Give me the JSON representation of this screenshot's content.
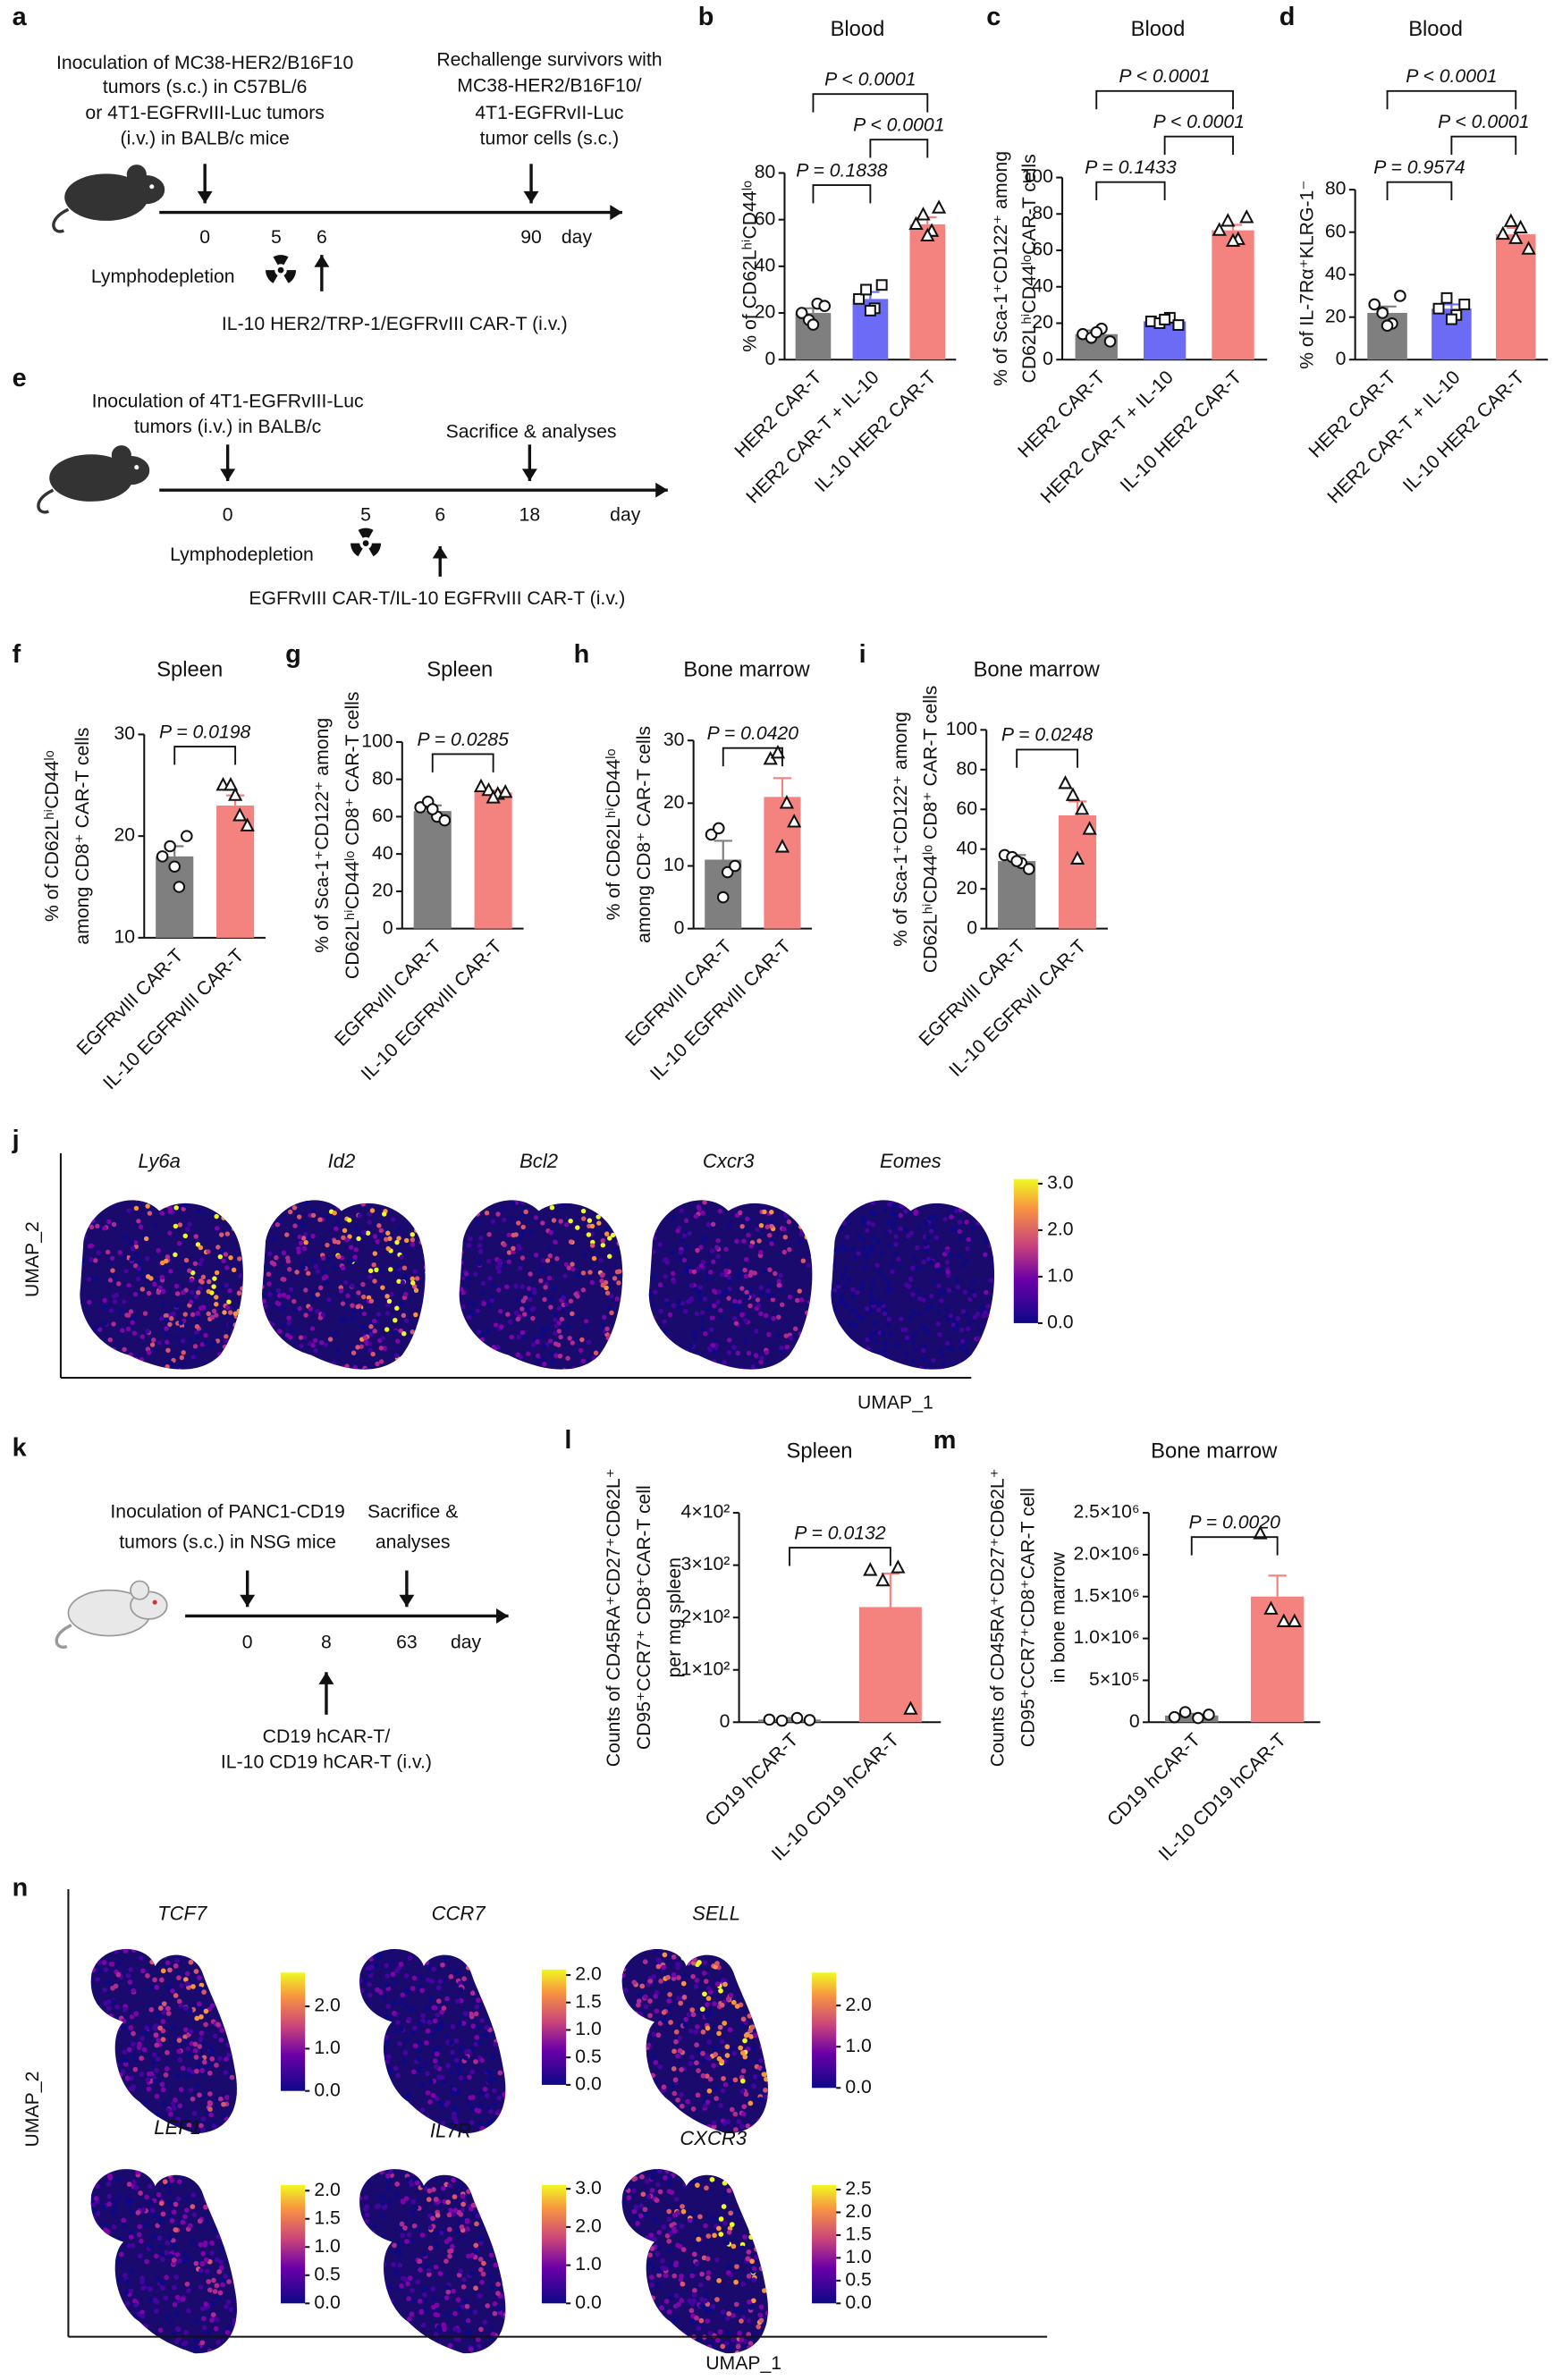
{
  "diagrams": {
    "a": {
      "letter": "a",
      "left_text": [
        "Inoculation of MC38-HER2/B16F10",
        "tumors (s.c.) in C57BL/6",
        "or 4T1-EGFRvIII-Luc tumors",
        "(i.v.) in BALB/c mice"
      ],
      "right_text": [
        "Rechallenge survivors with",
        "MC38-HER2/B16F10/",
        "4T1-EGFRvII-Luc",
        "tumor cells (s.c.)"
      ],
      "days": [
        "0",
        "5",
        "6",
        "90"
      ],
      "day_label": "day",
      "lymphodepletion": "Lymphodepletion",
      "bottom_text": [
        "IL-10 HER2/TRP-1/EGFRvIII CAR-T (i.v.)"
      ]
    },
    "e": {
      "letter": "e",
      "left_text": [
        "Inoculation of 4T1-EGFRvIII-Luc",
        "tumors (i.v.) in BALB/c"
      ],
      "right_text": [
        "Sacrifice & analyses"
      ],
      "days": [
        "0",
        "5",
        "6",
        "18"
      ],
      "day_label": "day",
      "lymphodepletion": "Lymphodepletion",
      "bottom_text": [
        "EGFRvIII CAR-T/IL-10 EGFRvIII CAR-T (i.v.)"
      ]
    },
    "k": {
      "letter": "k",
      "left_text": [
        "Inoculation of PANC1-CD19",
        "tumors (s.c.) in NSG mice"
      ],
      "right_text": [
        "Sacrifice &",
        "analyses"
      ],
      "days": [
        "0",
        "8",
        "63"
      ],
      "day_label": "day",
      "bottom_text": [
        "CD19 hCAR-T/",
        "IL-10 CD19 hCAR-T (i.v.)"
      ]
    }
  },
  "umaps": {
    "j": {
      "letter": "j",
      "xlabel": "UMAP_1",
      "ylabel": "UMAP_2",
      "genes": [
        {
          "name": "Ly6a"
        },
        {
          "name": "Id2"
        },
        {
          "name": "Bcl2"
        },
        {
          "name": "Cxcr3"
        },
        {
          "name": "Eomes",
          "clim": [
            0,
            3.1
          ],
          "ticks": [
            {
              "value": 0,
              "label": "0.0"
            },
            {
              "value": 1,
              "label": "1.0"
            },
            {
              "value": 2,
              "label": "2.0"
            },
            {
              "value": 3,
              "label": "3.0"
            }
          ]
        }
      ]
    },
    "n": {
      "letter": "n",
      "xlabel": "UMAP_1",
      "ylabel": "UMAP_2",
      "genes": [
        {
          "name": "TCF7",
          "clim": [
            0,
            2.8
          ],
          "ticks": [
            {
              "value": 0,
              "label": "0.0"
            },
            {
              "value": 1,
              "label": "1.0"
            },
            {
              "value": 2,
              "label": "2.0"
            }
          ]
        },
        {
          "name": "CCR7",
          "clim": [
            0,
            2.1
          ],
          "ticks": [
            {
              "value": 0,
              "label": "0.0"
            },
            {
              "value": 0.5,
              "label": "0.5"
            },
            {
              "value": 1,
              "label": "1.0"
            },
            {
              "value": 1.5,
              "label": "1.5"
            },
            {
              "value": 2,
              "label": "2.0"
            }
          ]
        },
        {
          "name": "SELL",
          "clim": [
            0,
            2.8
          ],
          "ticks": [
            {
              "value": 0,
              "label": "0.0"
            },
            {
              "value": 1,
              "label": "1.0"
            },
            {
              "value": 2,
              "label": "2.0"
            }
          ]
        },
        {
          "name": "LEF1",
          "clim": [
            0,
            2.1
          ],
          "ticks": [
            {
              "value": 0,
              "label": "0.0"
            },
            {
              "value": 0.5,
              "label": "0.5"
            },
            {
              "value": 1,
              "label": "1.0"
            },
            {
              "value": 1.5,
              "label": "1.5"
            },
            {
              "value": 2,
              "label": "2.0"
            }
          ]
        },
        {
          "name": "IL7R",
          "clim": [
            0,
            3.1
          ],
          "ticks": [
            {
              "value": 0,
              "label": "0.0"
            },
            {
              "value": 1,
              "label": "1.0"
            },
            {
              "value": 2,
              "label": "2.0"
            },
            {
              "value": 3,
              "label": "3.0"
            }
          ]
        },
        {
          "name": "CXCR3",
          "clim": [
            0,
            2.6
          ],
          "ticks": [
            {
              "value": 0,
              "label": "0.0"
            },
            {
              "value": 0.5,
              "label": "0.5"
            },
            {
              "value": 1,
              "label": "1.0"
            },
            {
              "value": 1.5,
              "label": "1.5"
            },
            {
              "value": 2,
              "label": "2.0"
            },
            {
              "value": 2.5,
              "label": "2.5"
            }
          ]
        }
      ]
    }
  },
  "chart_data": [
    {
      "type": "bar",
      "panel": "b",
      "title": "Blood",
      "ylabel": [
        "% of CD62LʰⁱCD44ˡᵒ"
      ],
      "categories": [
        "HER2 CAR-T",
        "HER2 CAR-T + IL-10",
        "IL-10 HER2 CAR-T"
      ],
      "colors": [
        "#7f7f7f",
        "#6b6bf5",
        "#f4827f"
      ],
      "markers": [
        "circle",
        "square",
        "triangle"
      ],
      "values": [
        20,
        26,
        58
      ],
      "errors": [
        2,
        3,
        3
      ],
      "points": [
        [
          20,
          17,
          24,
          23,
          15
        ],
        [
          26,
          30,
          22,
          32,
          21
        ],
        [
          58,
          62,
          55,
          65,
          53
        ]
      ],
      "ylim": [
        0,
        80
      ],
      "yticks": [
        0,
        20,
        40,
        60,
        80
      ],
      "p_values": [
        "P = 0.1838",
        "P < 0.0001",
        "P < 0.0001"
      ]
    },
    {
      "type": "bar",
      "panel": "c",
      "title": "Blood",
      "ylabel": [
        "% of Sca-1⁺CD122⁺ among",
        "CD62LʰⁱCD44ˡᵒCAR-T cells"
      ],
      "categories": [
        "HER2 CAR-T",
        "HER2 CAR-T + IL-10",
        "IL-10 HER2 CAR-T"
      ],
      "colors": [
        "#7f7f7f",
        "#6b6bf5",
        "#f4827f"
      ],
      "markers": [
        "circle",
        "square",
        "triangle"
      ],
      "values": [
        14,
        21,
        71
      ],
      "errors": [
        2,
        1,
        3
      ],
      "points": [
        [
          14,
          12,
          17,
          10,
          15
        ],
        [
          21,
          20,
          23,
          19,
          22
        ],
        [
          71,
          76,
          66,
          78,
          65
        ]
      ],
      "ylim": [
        0,
        100
      ],
      "yticks": [
        0,
        20,
        40,
        60,
        80,
        100
      ],
      "p_values": [
        "P = 0.1433",
        "P < 0.0001",
        "P < 0.0001"
      ]
    },
    {
      "type": "bar",
      "panel": "d",
      "title": "Blood",
      "ylabel": [
        "% of IL-7Rα⁺KLRG-1⁻"
      ],
      "categories": [
        "HER2 CAR-T",
        "HER2 CAR-T + IL-10",
        "IL-10 HER2 CAR-T"
      ],
      "colors": [
        "#7f7f7f",
        "#6b6bf5",
        "#f4827f"
      ],
      "markers": [
        "circle",
        "square",
        "triangle"
      ],
      "values": [
        22,
        24,
        59
      ],
      "errors": [
        3,
        2,
        3
      ],
      "points": [
        [
          26,
          22,
          17,
          30,
          16
        ],
        [
          24,
          29,
          21,
          26,
          19
        ],
        [
          59,
          65,
          62,
          52,
          57
        ]
      ],
      "ylim": [
        0,
        80
      ],
      "yticks": [
        0,
        20,
        40,
        60,
        80
      ],
      "p_values": [
        "P = 0.9574",
        "P < 0.0001",
        "P < 0.0001"
      ]
    },
    {
      "type": "bar",
      "panel": "f",
      "title": "Spleen",
      "ylabel": [
        "% of CD62LʰⁱCD44ˡᵒ",
        "among CD8⁺ CAR-T cells"
      ],
      "categories": [
        "EGFRvIII CAR-T",
        "IL-10 EGFRvIII CAR-T"
      ],
      "colors": [
        "#7f7f7f",
        "#f4827f"
      ],
      "markers": [
        "circle",
        "triangle"
      ],
      "values": [
        18,
        23
      ],
      "errors": [
        1,
        1
      ],
      "points": [
        [
          18,
          19,
          15,
          20,
          17
        ],
        [
          25,
          25,
          22,
          21,
          24
        ]
      ],
      "ylim": [
        10,
        30
      ],
      "yticks": [
        10,
        20,
        30
      ],
      "p_values": [
        "P = 0.0198"
      ]
    },
    {
      "type": "bar",
      "panel": "g",
      "title": "Spleen",
      "ylabel": [
        "% of Sca-1⁺CD122⁺ among",
        "CD62LʰⁱCD44ˡᵒ CD8⁺ CAR-T cells"
      ],
      "categories": [
        "EGFRvIII CAR-T",
        "IL-10 EGFRvIII CAR-T"
      ],
      "colors": [
        "#7f7f7f",
        "#f4827f"
      ],
      "markers": [
        "circle",
        "triangle"
      ],
      "values": [
        63,
        73
      ],
      "errors": [
        3,
        1
      ],
      "points": [
        [
          65,
          68,
          60,
          58,
          64
        ],
        [
          76,
          74,
          72,
          73,
          70
        ]
      ],
      "ylim": [
        0,
        100
      ],
      "yticks": [
        0,
        20,
        40,
        60,
        80,
        100
      ],
      "p_values": [
        "P = 0.0285"
      ]
    },
    {
      "type": "bar",
      "panel": "h",
      "title": "Bone marrow",
      "ylabel": [
        "% of CD62LʰⁱCD44ˡᵒ",
        "among CD8⁺ CAR-T cells"
      ],
      "categories": [
        "EGFRvIII CAR-T",
        "IL-10 EGFRvIII CAR-T"
      ],
      "colors": [
        "#7f7f7f",
        "#f4827f"
      ],
      "markers": [
        "circle",
        "triangle"
      ],
      "values": [
        11,
        21
      ],
      "errors": [
        3,
        3
      ],
      "points": [
        [
          15,
          16,
          9,
          10,
          5
        ],
        [
          27,
          28,
          20,
          17,
          13
        ]
      ],
      "ylim": [
        0,
        30
      ],
      "yticks": [
        0,
        10,
        20,
        30
      ],
      "p_values": [
        "P = 0.0420"
      ]
    },
    {
      "type": "bar",
      "panel": "i",
      "title": "Bone marrow",
      "ylabel": [
        "% of Sca-1⁺CD122⁺ among",
        "CD62LʰⁱCD44ˡᵒ CD8⁺ CAR-T cells"
      ],
      "categories": [
        "EGFRvIII CAR-T",
        "IL-10 EGFRvII CAR-T"
      ],
      "colors": [
        "#7f7f7f",
        "#f4827f"
      ],
      "markers": [
        "circle",
        "triangle"
      ],
      "values": [
        34,
        57
      ],
      "errors": [
        3,
        7
      ],
      "points": [
        [
          37,
          36,
          33,
          30,
          34
        ],
        [
          73,
          67,
          60,
          50,
          35
        ]
      ],
      "ylim": [
        0,
        100
      ],
      "yticks": [
        0,
        20,
        40,
        60,
        80,
        100
      ],
      "p_values": [
        "P = 0.0248"
      ]
    },
    {
      "type": "bar",
      "panel": "l",
      "title": "Spleen",
      "ylabel": [
        "Counts of CD45RA⁺CD27⁺CD62L⁺",
        "CD95⁺CCR7⁺ CD8⁺CAR-T cell",
        "per mg spleen"
      ],
      "categories": [
        "CD19 hCAR-T",
        "IL-10 CD19 hCAR-T"
      ],
      "colors": [
        "#7f7f7f",
        "#f4827f"
      ],
      "markers": [
        "circle",
        "triangle"
      ],
      "values": [
        5,
        220
      ],
      "errors": [
        3,
        64
      ],
      "points": [
        [
          5,
          3,
          8,
          4
        ],
        [
          290,
          270,
          295,
          25
        ]
      ],
      "ylim": [
        0,
        400
      ],
      "yticks": [
        0,
        {
          "value": 100,
          "label": "1×10²"
        },
        {
          "value": 200,
          "label": "2×10²"
        },
        {
          "value": 300,
          "label": "3×10²"
        },
        {
          "value": 400,
          "label": "4×10²"
        }
      ],
      "p_values": [
        "P = 0.0132"
      ]
    },
    {
      "type": "bar",
      "panel": "m",
      "title": "Bone marrow",
      "ylabel": [
        "Counts of CD45RA⁺CD27⁺CD62L⁺",
        "CD95⁺CCR7⁺CD8⁺CAR-T cell",
        "in bone marrow"
      ],
      "categories": [
        "CD19 hCAR-T",
        "IL-10 CD19 hCAR-T"
      ],
      "colors": [
        "#7f7f7f",
        "#f4827f"
      ],
      "markers": [
        "circle",
        "triangle"
      ],
      "values": [
        80000,
        1500000
      ],
      "errors": [
        20000,
        250000
      ],
      "points": [
        [
          60000,
          120000,
          50000,
          90000
        ],
        [
          2250000,
          1350000,
          1200000,
          1200000
        ]
      ],
      "ylim": [
        0,
        2500000
      ],
      "yticks": [
        0,
        {
          "value": 500000,
          "label": "5×10⁵"
        },
        {
          "value": 1000000,
          "label": "1.0×10⁶"
        },
        {
          "value": 1500000,
          "label": "1.5×10⁶"
        },
        {
          "value": 2000000,
          "label": "2.0×10⁶"
        },
        {
          "value": 2500000,
          "label": "2.5×10⁶"
        }
      ],
      "p_values": [
        "P = 0.0020"
      ]
    }
  ]
}
